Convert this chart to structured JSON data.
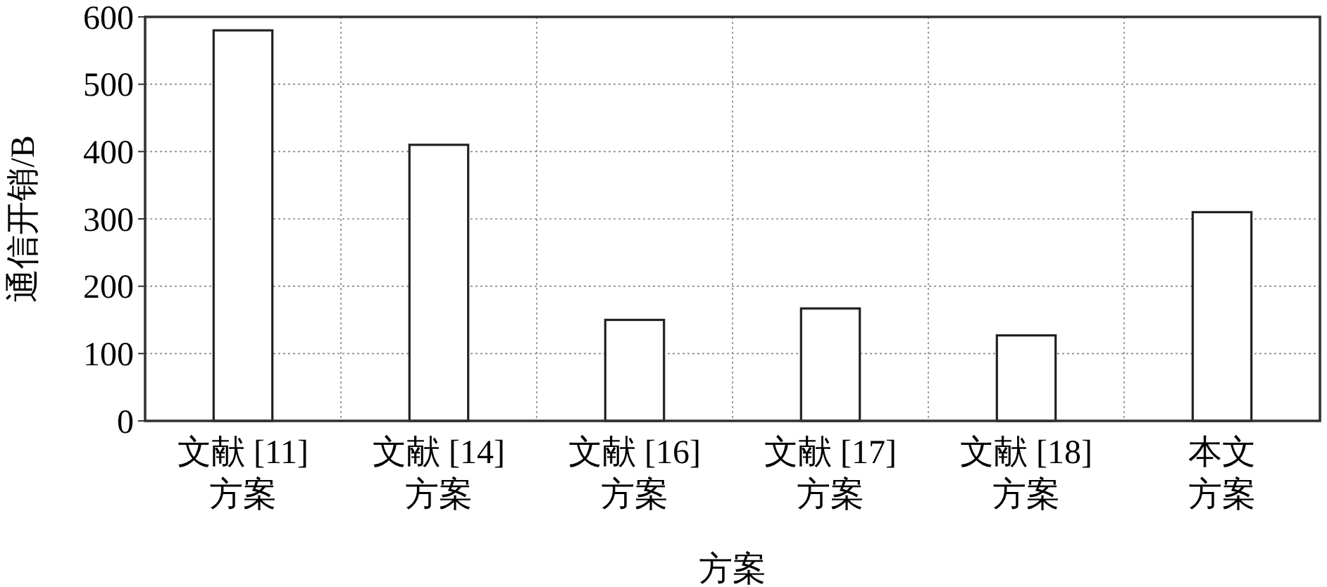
{
  "chart_data": {
    "type": "bar",
    "xlabel": "方案",
    "ylabel": "通信开销/B",
    "categories": [
      "文献 [11]\n方案",
      "文献 [14]\n方案",
      "文献 [16]\n方案",
      "文献 [17]\n方案",
      "文献 [18]\n方案",
      "本文方案"
    ],
    "values": [
      580,
      410,
      150,
      167,
      127,
      310
    ],
    "color": "#ffffff",
    "ylim": [
      0,
      600
    ],
    "yticks": [
      0,
      100,
      200,
      300,
      400,
      500,
      600
    ],
    "grid": true
  }
}
